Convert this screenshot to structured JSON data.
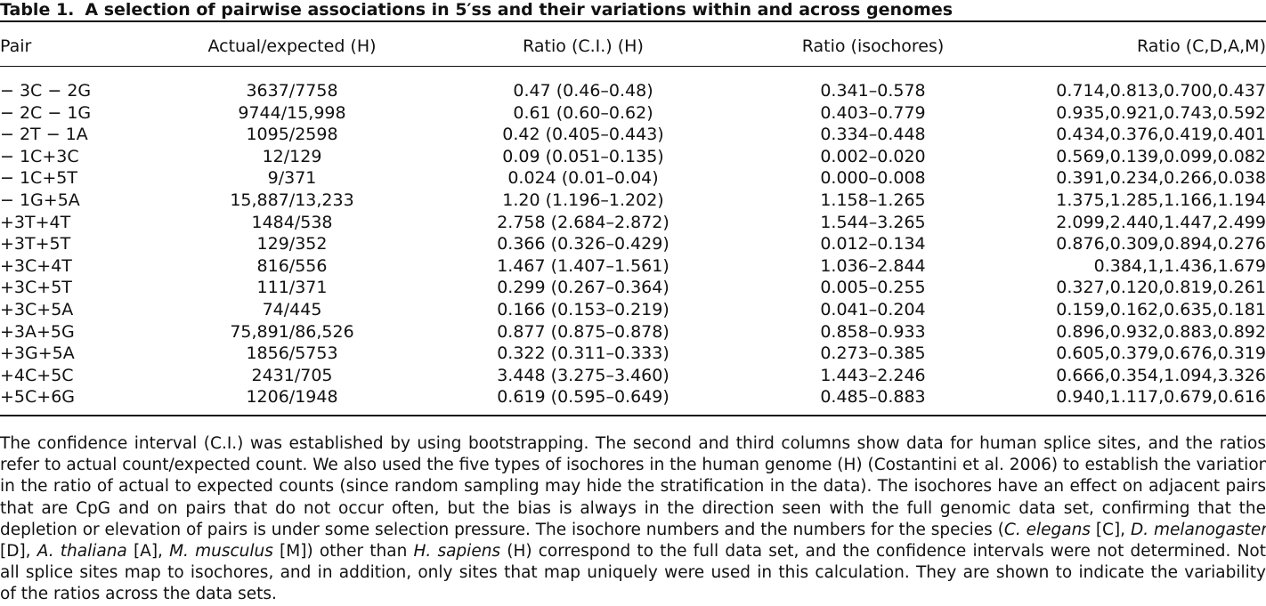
{
  "table": {
    "caption_label": "Table 1.",
    "caption_title": "A selection of pairwise associations in 5′ss and their variations within and across genomes",
    "headers": [
      "Pair",
      "Actual/expected (H)",
      "Ratio (C.I.) (H)",
      "Ratio (isochores)",
      "Ratio (C,D,A,M)"
    ],
    "rows": [
      [
        "− 3C − 2G",
        "3637/7758",
        "0.47 (0.46–0.48)",
        "0.341–0.578",
        "0.714,0.813,0.700,0.437"
      ],
      [
        "− 2C − 1G",
        "9744/15,998",
        "0.61 (0.60–0.62)",
        "0.403–0.779",
        "0.935,0.921,0.743,0.592"
      ],
      [
        "− 2T − 1A",
        "1095/2598",
        "0.42 (0.405–0.443)",
        "0.334–0.448",
        "0.434,0.376,0.419,0.401"
      ],
      [
        "− 1C+3C",
        "12/129",
        "0.09 (0.051–0.135)",
        "0.002–0.020",
        "0.569,0.139,0.099,0.082"
      ],
      [
        "− 1C+5T",
        "9/371",
        "0.024 (0.01–0.04)",
        "0.000–0.008",
        "0.391,0.234,0.266,0.038"
      ],
      [
        "− 1G+5A",
        "15,887/13,233",
        "1.20 (1.196–1.202)",
        "1.158–1.265",
        "1.375,1.285,1.166,1.194"
      ],
      [
        "+3T+4T",
        "1484/538",
        "2.758 (2.684–2.872)",
        "1.544–3.265",
        "2.099,2.440,1.447,2.499"
      ],
      [
        "+3T+5T",
        "129/352",
        "0.366 (0.326–0.429)",
        "0.012–0.134",
        "0.876,0.309,0.894,0.276"
      ],
      [
        "+3C+4T",
        "816/556",
        "1.467 (1.407–1.561)",
        "1.036–2.844",
        "0.384,1,1.436,1.679"
      ],
      [
        "+3C+5T",
        "111/371",
        "0.299 (0.267–0.364)",
        "0.005–0.255",
        "0.327,0.120,0.819,0.261"
      ],
      [
        "+3C+5A",
        "74/445",
        "0.166 (0.153–0.219)",
        "0.041–0.204",
        "0.159,0.162,0.635,0.181"
      ],
      [
        "+3A+5G",
        "75,891/86,526",
        "0.877 (0.875–0.878)",
        "0.858–0.933",
        "0.896,0.932,0.883,0.892"
      ],
      [
        "+3G+5A",
        "1856/5753",
        "0.322 (0.311–0.333)",
        "0.273–0.385",
        "0.605,0.379,0.676,0.319"
      ],
      [
        "+4C+5C",
        "2431/705",
        "3.448 (3.275–3.460)",
        "1.443–2.246",
        "0.666,0.354,1.094,3.326"
      ],
      [
        "+5C+6G",
        "1206/1948",
        "0.619 (0.595–0.649)",
        "0.485–0.883",
        "0.940,1.117,0.679,0.616"
      ]
    ]
  },
  "footnote": {
    "lines": [
      [
        "The confidence interval (C.I.) was established by using bootstrapping. The second and third columns show data for human splice sites, and the ratios"
      ],
      [
        "refer to actual count/expected count. We also used the five types of isochores in the human genome (H) (Costantini et al. 2006) to establish the variation"
      ],
      [
        "in the ratio of actual to expected counts (since random sampling may hide the stratification in the data). The isochores have an effect on adjacent pairs"
      ],
      [
        "that are CpG and on pairs that do not occur often, but the bias is always in the direction seen with the full genomic data set, confirming that the"
      ],
      [
        "depletion or elevation of pairs is under some selection pressure. The isochore numbers and the numbers for the species (",
        {
          "i": "C. elegans"
        },
        " [C], ",
        {
          "i": "D. melanogaster"
        }
      ],
      [
        "[D], ",
        {
          "i": "A. thaliana"
        },
        " [A], ",
        {
          "i": "M. musculus"
        },
        " [M]) other than ",
        {
          "i": "H. sapiens"
        },
        " (H) correspond to the full data set, and the confidence intervals were not determined. Not"
      ],
      [
        "all splice sites map to isochores, and in addition, only sites that map uniquely were used in this calculation. They are shown to indicate the variability"
      ],
      [
        "of the ratios across the data sets."
      ]
    ]
  }
}
